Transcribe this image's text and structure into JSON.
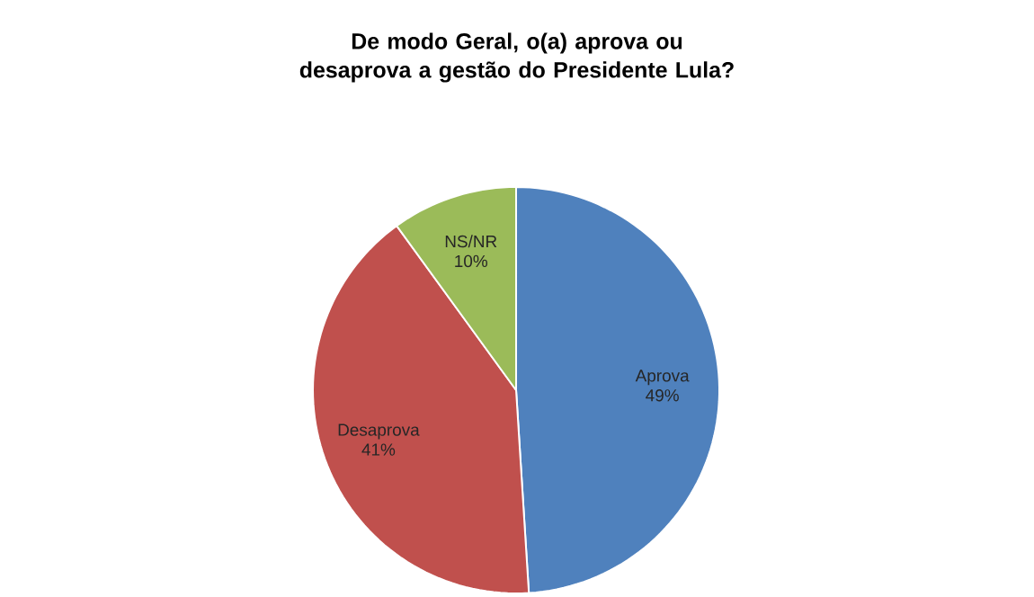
{
  "chart_data": {
    "type": "pie",
    "title": "De modo Geral, o(a) aprova ou desaprova a gestão do Presidente Lula?",
    "categories": [
      "Aprova",
      "Desaprova",
      "NS/NR"
    ],
    "values": [
      49,
      41,
      10
    ],
    "colors": [
      "#4f81bd",
      "#c0504d",
      "#9bbb59"
    ],
    "value_labels": [
      "49%",
      "41%",
      "10%"
    ]
  }
}
